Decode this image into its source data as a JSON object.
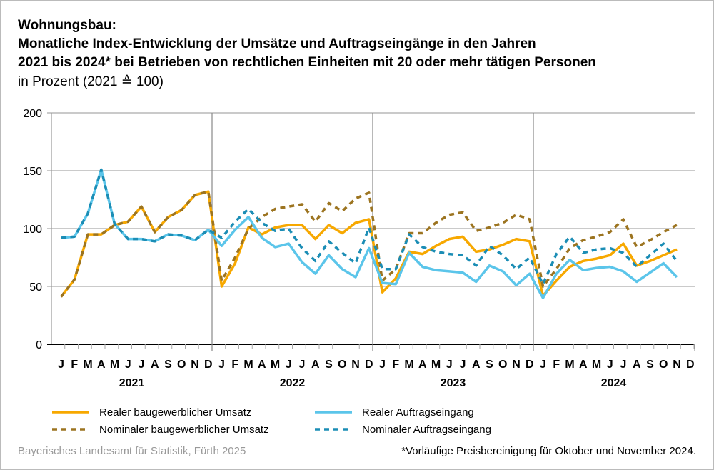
{
  "title": {
    "line1": "Wohnungsbau:",
    "line2": "Monatliche Index-Entwicklung der Umsätze und Auftragseingänge in den Jahren",
    "line3": "2021 bis 2024* bei Betrieben von rechtlichen Einheiten mit 20 oder mehr tätigen Personen",
    "line4": "in Prozent (2021 ≙ 100)"
  },
  "footer": {
    "source": "Bayerisches Landesamt für Statistik, Fürth 2025",
    "note": "*Vorläufige Preisbereinigung für Oktober und November 2024."
  },
  "chart_data": {
    "type": "line",
    "ylim": [
      0,
      200
    ],
    "yticks": [
      0,
      50,
      100,
      150,
      200
    ],
    "grid": true,
    "legend_position": "bottom",
    "months": [
      "J",
      "F",
      "M",
      "A",
      "M",
      "J",
      "J",
      "A",
      "S",
      "O",
      "N",
      "D"
    ],
    "years": [
      "2021",
      "2022",
      "2023",
      "2024"
    ],
    "series": [
      {
        "name": "Realer baugewerblicher Umsatz",
        "color": "#F7A800",
        "style": "solid",
        "values": [
          41,
          56,
          95,
          95,
          103,
          106,
          119,
          97,
          110,
          116,
          129,
          132,
          50,
          70,
          101,
          95,
          101,
          103,
          103,
          91,
          103,
          96,
          105,
          108,
          45,
          57,
          80,
          78,
          85,
          91,
          93,
          80,
          82,
          86,
          91,
          89,
          42,
          55,
          67,
          72,
          74,
          77,
          87,
          68,
          72,
          77,
          82,
          null
        ]
      },
      {
        "name": "Nominaler baugewerblicher Umsatz",
        "color": "#9C7420",
        "style": "dashed",
        "values": [
          41,
          56,
          95,
          95,
          103,
          106,
          119,
          97,
          110,
          116,
          129,
          132,
          55,
          75,
          100,
          110,
          117,
          119,
          121,
          106,
          122,
          115,
          126,
          131,
          55,
          65,
          96,
          96,
          105,
          112,
          114,
          98,
          101,
          105,
          112,
          108,
          50,
          65,
          83,
          90,
          93,
          97,
          108,
          84,
          90,
          97,
          103,
          null
        ]
      },
      {
        "name": "Realer Auftragseingang",
        "color": "#5BC5EA",
        "style": "solid",
        "values": [
          92,
          93,
          113,
          151,
          104,
          91,
          91,
          89,
          95,
          94,
          90,
          99,
          85,
          99,
          110,
          92,
          84,
          87,
          71,
          61,
          77,
          65,
          58,
          83,
          53,
          52,
          79,
          67,
          64,
          63,
          62,
          54,
          68,
          63,
          51,
          61,
          40,
          61,
          73,
          64,
          66,
          67,
          63,
          54,
          62,
          70,
          58,
          null
        ]
      },
      {
        "name": "Nominaler Auftragseingang",
        "color": "#1B8DB5",
        "style": "dashed",
        "values": [
          92,
          93,
          113,
          151,
          104,
          91,
          91,
          89,
          95,
          94,
          90,
          99,
          92,
          106,
          117,
          105,
          98,
          100,
          83,
          72,
          89,
          79,
          70,
          101,
          65,
          65,
          95,
          84,
          80,
          78,
          77,
          68,
          85,
          77,
          65,
          75,
          52,
          78,
          93,
          79,
          82,
          83,
          79,
          67,
          77,
          87,
          72,
          null
        ]
      }
    ]
  }
}
